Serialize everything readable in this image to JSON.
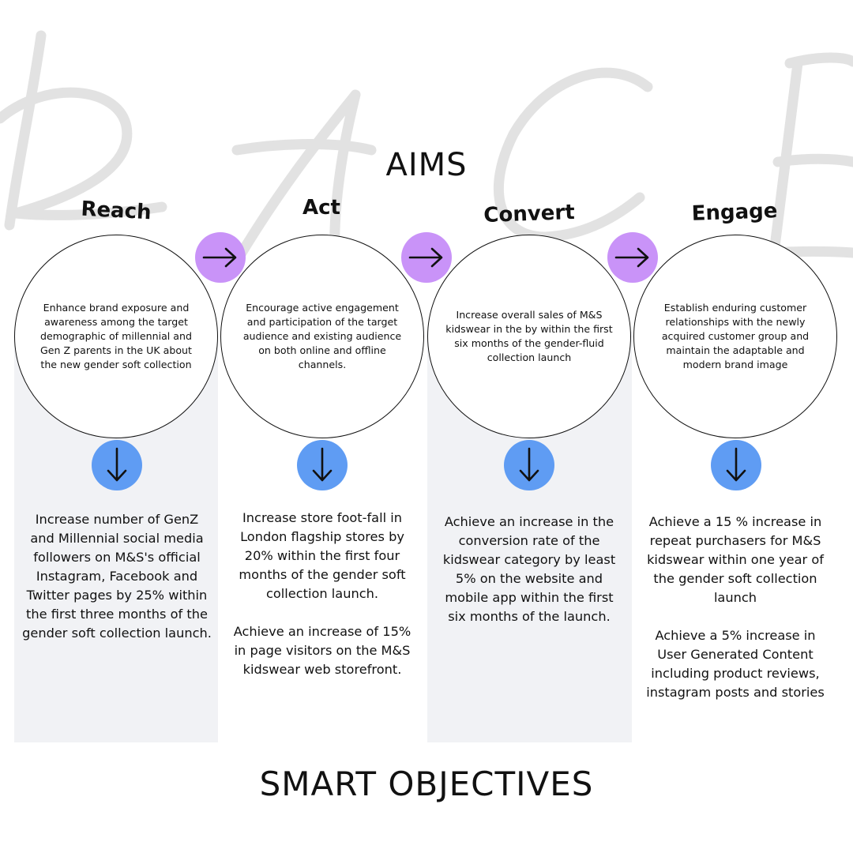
{
  "headings": {
    "aims": "AIMS",
    "objectives": "SMART OBJECTIVES"
  },
  "watermark_letters": "RACE",
  "colors": {
    "arrow_badge": "#c993f8",
    "down_badge": "#5f9cf3",
    "panel": "#f1f2f5",
    "watermark": "#e2e2e2"
  },
  "stages": [
    {
      "title": "Reach",
      "aim": "Enhance brand exposure and awareness among the target demographic of millennial and Gen Z parents in the UK about the new gender soft collection",
      "objectives": [
        "Increase number of GenZ and Millennial social media followers on M&S's official Instagram, Facebook and Twitter pages by 25% within the first three months of the gender soft collection launch."
      ]
    },
    {
      "title": "Act",
      "aim": "Encourage active engagement and participation of the target audience and existing audience on both online and offline channels.",
      "objectives": [
        "Increase store foot-fall in London flagship stores by 20% within the first four months of the gender soft collection launch.",
        "Achieve an increase of 15% in page visitors on the M&S kidswear web storefront."
      ]
    },
    {
      "title": "Convert",
      "aim": "Increase overall sales of M&S kidswear in the by within the first six months of the gender-fluid collection launch",
      "objectives": [
        "Achieve an increase in the conversion rate of the kidswear category by least 5% on the website and mobile app within the first six months of the launch."
      ]
    },
    {
      "title": "Engage",
      "aim": "Establish enduring customer relationships with the newly acquired customer group and maintain the adaptable and modern brand image",
      "objectives": [
        "Achieve a 15 % increase in repeat purchasers for M&S kidswear within one year of the gender soft collection launch",
        "Achieve a 5% increase in User Generated Content including product reviews, instagram posts and stories"
      ]
    }
  ],
  "icons": {
    "right_arrow": "right-arrow-icon",
    "down_arrow": "down-arrow-icon"
  }
}
